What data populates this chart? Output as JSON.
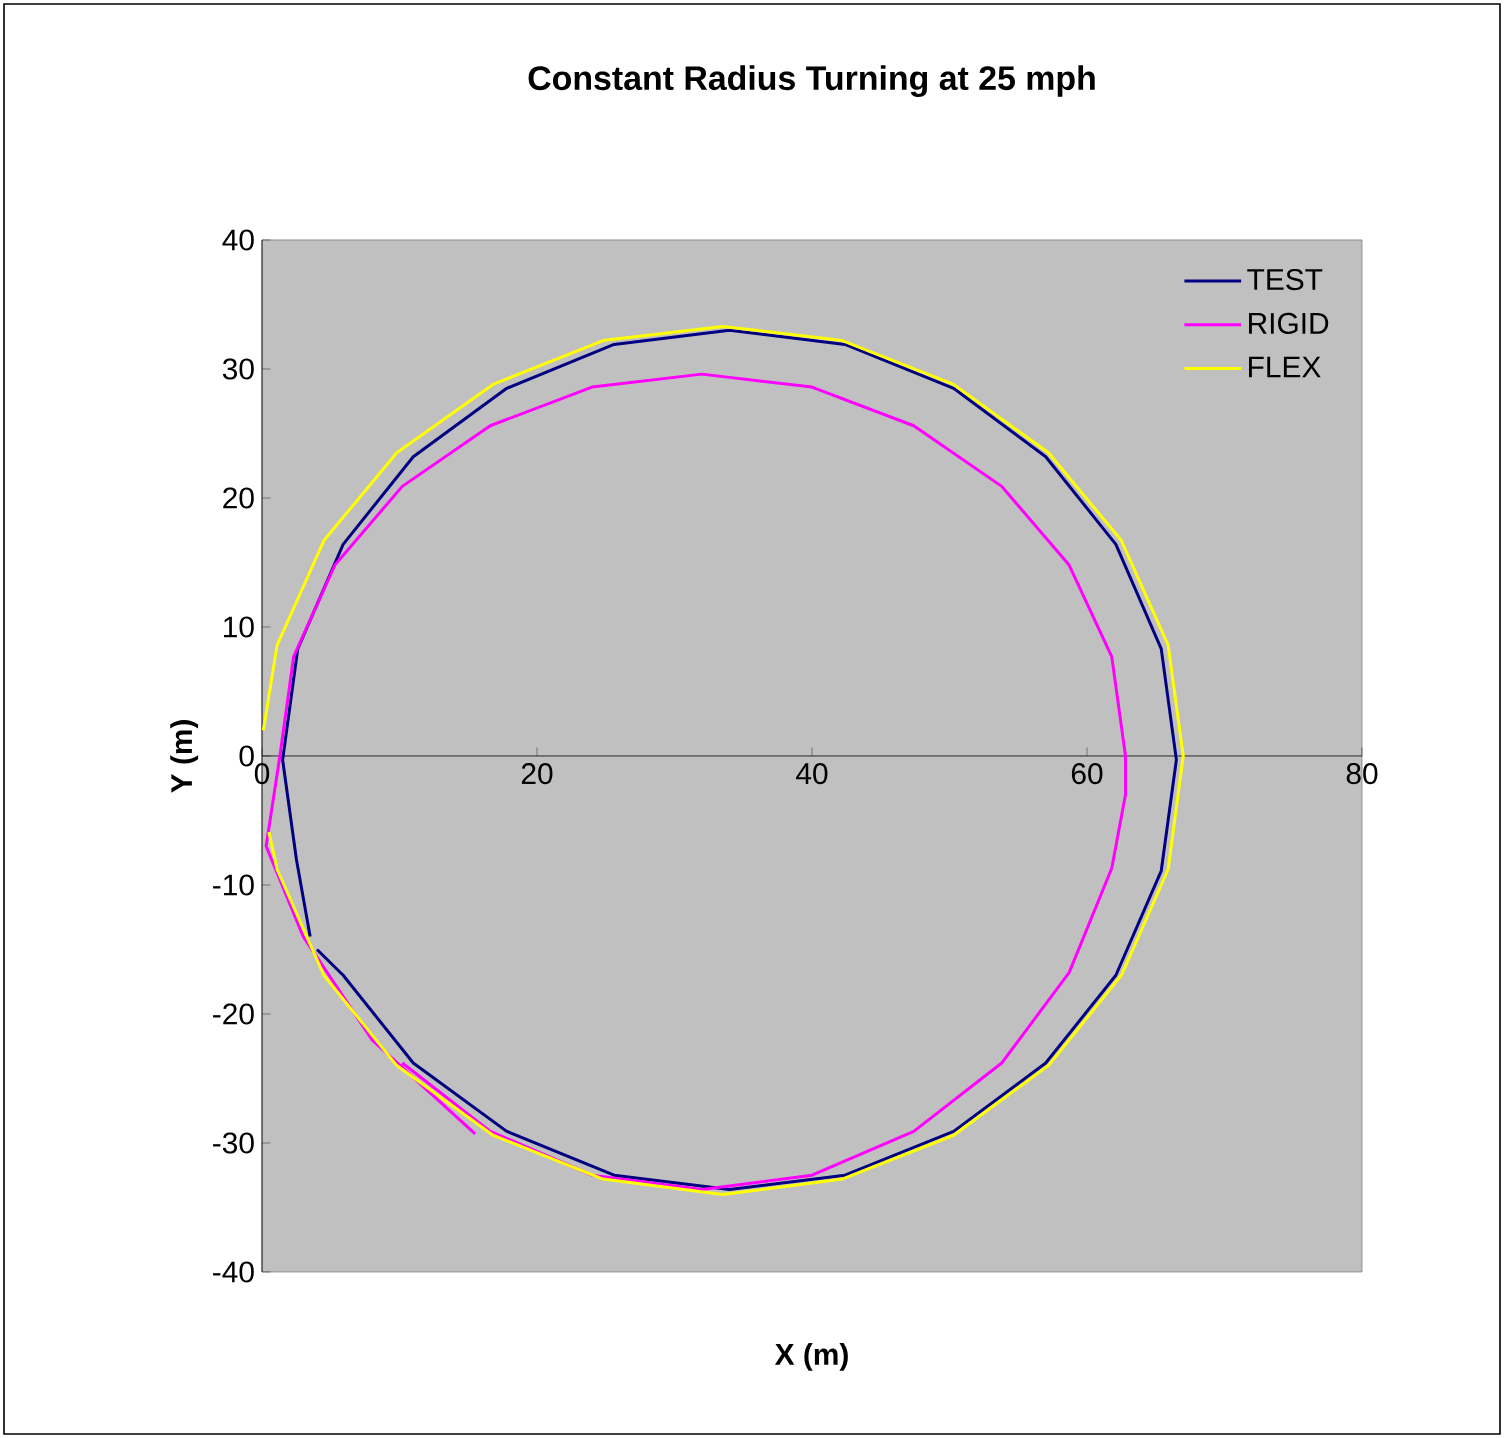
{
  "chart_data": {
    "type": "line",
    "title": "Constant Radius Turning at 25 mph",
    "xlabel": "X (m)",
    "ylabel": "Y (m)",
    "xlim": [
      0,
      80
    ],
    "ylim": [
      -40,
      40
    ],
    "xticks": [
      0,
      20,
      40,
      60,
      80
    ],
    "yticks": [
      -40,
      -30,
      -20,
      -10,
      0,
      10,
      20,
      30,
      40
    ],
    "legend": "top right",
    "line_style": "solid",
    "series": [
      {
        "name": "TEST",
        "color": "#000080",
        "x": [
          3.5,
          2.5,
          1.5,
          2.6,
          5.9,
          11.0,
          17.8,
          25.6,
          34,
          42.4,
          50.3,
          57,
          62.1,
          65.4,
          66.5,
          65.4,
          62.1,
          57,
          50.3,
          42.4,
          34,
          25.6,
          17.8,
          11,
          5.9,
          4
        ],
        "values": [
          -14,
          -8,
          -0.3,
          8.3,
          16.4,
          23.2,
          28.5,
          31.9,
          33.0,
          31.9,
          28.5,
          23.2,
          16.4,
          8.3,
          -0.3,
          -8.9,
          -17,
          -23.8,
          -29.1,
          -32.5,
          -33.6,
          -32.5,
          -29.1,
          -23.8,
          -17,
          -15
        ]
      },
      {
        "name": "RIGID",
        "color": "#ff00ff",
        "x": [
          15.5,
          8,
          3,
          0.3,
          1.3,
          2.3,
          5.3,
          10.2,
          16.6,
          24.0,
          32,
          40,
          47.4,
          53.8,
          58.7,
          61.8,
          62.8,
          62.8,
          61.8,
          58.7,
          53.8,
          47.4,
          40,
          32,
          24,
          16.6,
          10.2
        ],
        "values": [
          -29.3,
          -22,
          -14,
          -7,
          0,
          7.7,
          14.8,
          20.9,
          25.6,
          28.6,
          29.6,
          28.6,
          25.6,
          20.9,
          14.8,
          7.7,
          0,
          -3,
          -8.7,
          -16.8,
          -23.8,
          -29.1,
          -32.5,
          -33.6,
          -32.5,
          -29.1,
          -23.8
        ]
      },
      {
        "name": "FLEX",
        "color": "#ffff00",
        "x": [
          0.1,
          1.1,
          4.5,
          9.8,
          16.8,
          24.8,
          33.5,
          42.2,
          50.3,
          57.2,
          62.5,
          65.9,
          67,
          65.9,
          62.5,
          57.2,
          50.3,
          42.2,
          33.5,
          24.8,
          16.8,
          9.8,
          4.5,
          1.1,
          0.5
        ],
        "values": [
          2,
          8.6,
          16.7,
          23.5,
          28.8,
          32.2,
          33.3,
          32.2,
          28.8,
          23.5,
          16.7,
          8.6,
          0,
          -8.8,
          -17,
          -24,
          -29.4,
          -32.8,
          -34,
          -32.8,
          -29.4,
          -24,
          -17,
          -8.8,
          -5.9
        ]
      }
    ]
  }
}
